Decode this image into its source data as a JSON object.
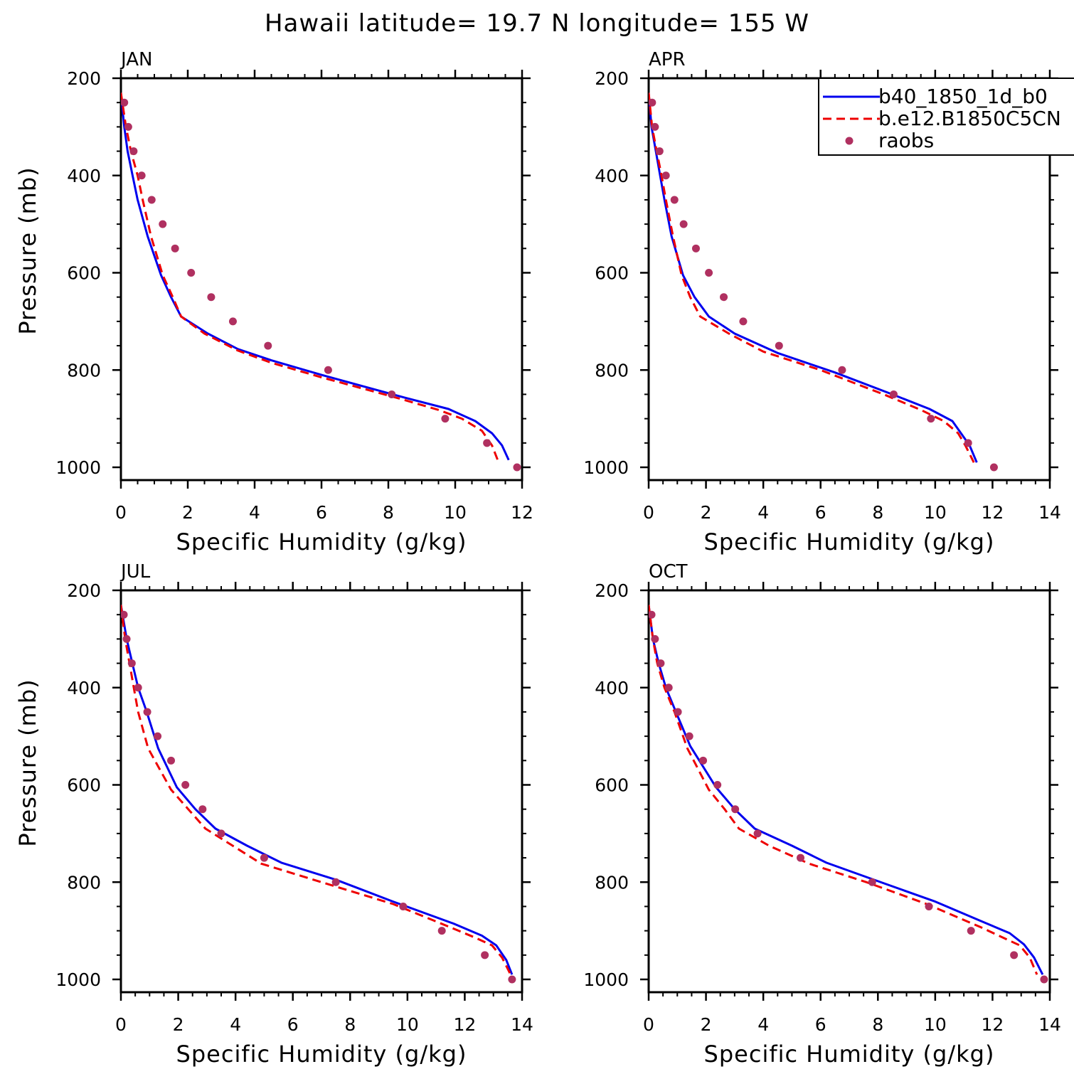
{
  "title": "Hawaii  latitude= 19.7 N longitude= 155 W",
  "colors": {
    "model_a": "#0000ee",
    "model_b": "#ee0000",
    "obs": "#b03060",
    "axis": "#000000"
  },
  "legend": {
    "entries": [
      {
        "label": "b40_1850_1d_b0",
        "style": "solid",
        "color_key": "model_a"
      },
      {
        "label": "b.e12.B1850C5CN",
        "style": "dashed",
        "color_key": "model_b"
      },
      {
        "label": "raobs",
        "style": "marker",
        "color_key": "obs"
      }
    ],
    "placement": "top-right of APR panel"
  },
  "chart_data": [
    {
      "type": "line",
      "panel": "JAN",
      "xlabel": "Specific Humidity (g/kg)",
      "ylabel": "Pressure (mb)",
      "xlim": [
        0,
        12
      ],
      "xticks": [
        0,
        2,
        4,
        6,
        8,
        10,
        12
      ],
      "ylim": [
        200,
        1000
      ],
      "y_inverted": true,
      "yticks": [
        200,
        400,
        600,
        800,
        1000
      ],
      "series": [
        {
          "name": "b40_1850_1d_b0",
          "style": "solid",
          "points": [
            [
              0.0,
              230
            ],
            [
              0.1,
              300
            ],
            [
              0.2,
              350
            ],
            [
              0.35,
              400
            ],
            [
              0.5,
              450
            ],
            [
              0.8,
              525
            ],
            [
              1.2,
              605
            ],
            [
              1.5,
              650
            ],
            [
              1.8,
              690
            ],
            [
              2.6,
              725
            ],
            [
              3.5,
              757
            ],
            [
              4.5,
              780
            ],
            [
              6.0,
              810
            ],
            [
              8.5,
              857
            ],
            [
              9.8,
              880
            ],
            [
              10.6,
              905
            ],
            [
              11.1,
              930
            ],
            [
              11.4,
              955
            ],
            [
              11.6,
              985
            ]
          ]
        },
        {
          "name": "b.e12.B1850C5CN",
          "style": "dashed",
          "points": [
            [
              0.0,
              230
            ],
            [
              0.15,
              300
            ],
            [
              0.3,
              350
            ],
            [
              0.5,
              400
            ],
            [
              0.65,
              450
            ],
            [
              0.9,
              525
            ],
            [
              1.25,
              605
            ],
            [
              1.55,
              650
            ],
            [
              1.8,
              690
            ],
            [
              2.5,
              725
            ],
            [
              3.5,
              760
            ],
            [
              4.5,
              785
            ],
            [
              6.0,
              815
            ],
            [
              8.3,
              858
            ],
            [
              9.5,
              882
            ],
            [
              10.2,
              900
            ],
            [
              10.8,
              925
            ],
            [
              11.1,
              955
            ],
            [
              11.3,
              990
            ]
          ]
        },
        {
          "name": "raobs",
          "style": "marker",
          "points": [
            [
              0.1,
              250
            ],
            [
              0.22,
              300
            ],
            [
              0.38,
              350
            ],
            [
              0.62,
              400
            ],
            [
              0.92,
              450
            ],
            [
              1.25,
              500
            ],
            [
              1.62,
              550
            ],
            [
              2.1,
              600
            ],
            [
              2.7,
              650
            ],
            [
              3.35,
              700
            ],
            [
              4.4,
              750
            ],
            [
              6.2,
              800
            ],
            [
              8.1,
              850
            ],
            [
              9.7,
              900
            ],
            [
              10.95,
              950
            ],
            [
              11.85,
              1000
            ]
          ]
        }
      ]
    },
    {
      "type": "line",
      "panel": "APR",
      "xlabel": "Specific Humidity (g/kg)",
      "ylabel": "",
      "xlim": [
        0,
        14
      ],
      "xticks": [
        0,
        2,
        4,
        6,
        8,
        10,
        12,
        14
      ],
      "ylim": [
        200,
        1000
      ],
      "y_inverted": true,
      "yticks": [
        200,
        400,
        600,
        800,
        1000
      ],
      "series": [
        {
          "name": "b40_1850_1d_b0",
          "style": "solid",
          "points": [
            [
              0.0,
              230
            ],
            [
              0.1,
              300
            ],
            [
              0.25,
              350
            ],
            [
              0.4,
              400
            ],
            [
              0.55,
              450
            ],
            [
              0.8,
              525
            ],
            [
              1.2,
              605
            ],
            [
              1.6,
              650
            ],
            [
              2.1,
              690
            ],
            [
              3.0,
              725
            ],
            [
              4.5,
              765
            ],
            [
              6.5,
              805
            ],
            [
              8.5,
              850
            ],
            [
              9.8,
              880
            ],
            [
              10.6,
              905
            ],
            [
              10.9,
              930
            ],
            [
              11.2,
              955
            ],
            [
              11.45,
              990
            ]
          ]
        },
        {
          "name": "b.e12.B1850C5CN",
          "style": "dashed",
          "points": [
            [
              0.0,
              230
            ],
            [
              0.12,
              300
            ],
            [
              0.28,
              350
            ],
            [
              0.45,
              400
            ],
            [
              0.6,
              450
            ],
            [
              0.85,
              525
            ],
            [
              1.15,
              605
            ],
            [
              1.45,
              650
            ],
            [
              1.8,
              690
            ],
            [
              2.8,
              725
            ],
            [
              4.0,
              762
            ],
            [
              6.0,
              800
            ],
            [
              8.2,
              850
            ],
            [
              9.5,
              882
            ],
            [
              10.3,
              905
            ],
            [
              10.8,
              930
            ],
            [
              11.05,
              955
            ],
            [
              11.35,
              990
            ]
          ]
        },
        {
          "name": "raobs",
          "style": "marker",
          "points": [
            [
              0.12,
              250
            ],
            [
              0.22,
              300
            ],
            [
              0.38,
              350
            ],
            [
              0.6,
              400
            ],
            [
              0.9,
              450
            ],
            [
              1.22,
              500
            ],
            [
              1.65,
              550
            ],
            [
              2.1,
              600
            ],
            [
              2.62,
              650
            ],
            [
              3.3,
              700
            ],
            [
              4.55,
              750
            ],
            [
              6.75,
              800
            ],
            [
              8.55,
              850
            ],
            [
              9.85,
              900
            ],
            [
              11.15,
              950
            ],
            [
              12.05,
              1000
            ]
          ]
        }
      ]
    },
    {
      "type": "line",
      "panel": "JUL",
      "xlabel": "Specific Humidity (g/kg)",
      "ylabel": "Pressure (mb)",
      "xlim": [
        0,
        14
      ],
      "xticks": [
        0,
        2,
        4,
        6,
        8,
        10,
        12,
        14
      ],
      "ylim": [
        200,
        1000
      ],
      "y_inverted": true,
      "yticks": [
        200,
        400,
        600,
        800,
        1000
      ],
      "series": [
        {
          "name": "b40_1850_1d_b0",
          "style": "solid",
          "points": [
            [
              0.0,
              230
            ],
            [
              0.2,
              300
            ],
            [
              0.4,
              350
            ],
            [
              0.6,
              400
            ],
            [
              0.9,
              450
            ],
            [
              1.3,
              525
            ],
            [
              1.95,
              605
            ],
            [
              2.6,
              650
            ],
            [
              3.3,
              690
            ],
            [
              4.4,
              725
            ],
            [
              5.6,
              760
            ],
            [
              7.5,
              795
            ],
            [
              9.5,
              840
            ],
            [
              11.6,
              885
            ],
            [
              12.6,
              910
            ],
            [
              13.1,
              930
            ],
            [
              13.45,
              960
            ],
            [
              13.65,
              990
            ]
          ]
        },
        {
          "name": "b.e12.B1850C5CN",
          "style": "dashed",
          "points": [
            [
              0.0,
              230
            ],
            [
              0.15,
              300
            ],
            [
              0.3,
              350
            ],
            [
              0.45,
              400
            ],
            [
              0.6,
              450
            ],
            [
              0.95,
              525
            ],
            [
              1.75,
              610
            ],
            [
              2.35,
              650
            ],
            [
              2.95,
              690
            ],
            [
              3.9,
              725
            ],
            [
              4.9,
              762
            ],
            [
              7.0,
              800
            ],
            [
              9.5,
              845
            ],
            [
              11.5,
              893
            ],
            [
              12.4,
              915
            ],
            [
              12.95,
              930
            ],
            [
              13.3,
              955
            ],
            [
              13.6,
              990
            ]
          ]
        },
        {
          "name": "raobs",
          "style": "marker",
          "points": [
            [
              0.1,
              250
            ],
            [
              0.2,
              300
            ],
            [
              0.38,
              350
            ],
            [
              0.6,
              400
            ],
            [
              0.92,
              450
            ],
            [
              1.28,
              500
            ],
            [
              1.75,
              550
            ],
            [
              2.25,
              600
            ],
            [
              2.85,
              650
            ],
            [
              3.5,
              700
            ],
            [
              5.0,
              750
            ],
            [
              7.5,
              800
            ],
            [
              9.85,
              850
            ],
            [
              11.2,
              900
            ],
            [
              12.7,
              950
            ],
            [
              13.65,
              1000
            ]
          ]
        }
      ]
    },
    {
      "type": "line",
      "panel": "OCT",
      "xlabel": "Specific Humidity (g/kg)",
      "ylabel": "",
      "xlim": [
        0,
        14
      ],
      "xticks": [
        0,
        2,
        4,
        6,
        8,
        10,
        12,
        14
      ],
      "ylim": [
        200,
        1000
      ],
      "y_inverted": true,
      "yticks": [
        200,
        400,
        600,
        800,
        1000
      ],
      "series": [
        {
          "name": "b40_1850_1d_b0",
          "style": "solid",
          "points": [
            [
              0.0,
              230
            ],
            [
              0.15,
              300
            ],
            [
              0.35,
              350
            ],
            [
              0.6,
              400
            ],
            [
              0.95,
              450
            ],
            [
              1.45,
              520
            ],
            [
              2.35,
              605
            ],
            [
              3.0,
              650
            ],
            [
              3.7,
              690
            ],
            [
              5.0,
              725
            ],
            [
              6.2,
              760
            ],
            [
              8.0,
              798
            ],
            [
              10.0,
              840
            ],
            [
              11.6,
              880
            ],
            [
              12.6,
              905
            ],
            [
              13.1,
              928
            ],
            [
              13.45,
              955
            ],
            [
              13.75,
              990
            ]
          ]
        },
        {
          "name": "b.e12.B1850C5CN",
          "style": "dashed",
          "points": [
            [
              0.0,
              230
            ],
            [
              0.15,
              300
            ],
            [
              0.3,
              350
            ],
            [
              0.55,
              400
            ],
            [
              0.9,
              450
            ],
            [
              1.35,
              525
            ],
            [
              2.1,
              610
            ],
            [
              2.65,
              650
            ],
            [
              3.15,
              690
            ],
            [
              4.2,
              725
            ],
            [
              5.6,
              762
            ],
            [
              7.6,
              800
            ],
            [
              9.7,
              845
            ],
            [
              11.6,
              893
            ],
            [
              12.4,
              915
            ],
            [
              12.95,
              930
            ],
            [
              13.3,
              955
            ],
            [
              13.55,
              990
            ]
          ]
        },
        {
          "name": "raobs",
          "style": "marker",
          "points": [
            [
              0.1,
              250
            ],
            [
              0.22,
              300
            ],
            [
              0.42,
              350
            ],
            [
              0.7,
              400
            ],
            [
              1.02,
              450
            ],
            [
              1.42,
              500
            ],
            [
              1.9,
              550
            ],
            [
              2.4,
              600
            ],
            [
              3.02,
              650
            ],
            [
              3.8,
              700
            ],
            [
              5.3,
              750
            ],
            [
              7.8,
              800
            ],
            [
              9.78,
              850
            ],
            [
              11.25,
              900
            ],
            [
              12.75,
              950
            ],
            [
              13.8,
              1000
            ]
          ]
        }
      ]
    }
  ]
}
